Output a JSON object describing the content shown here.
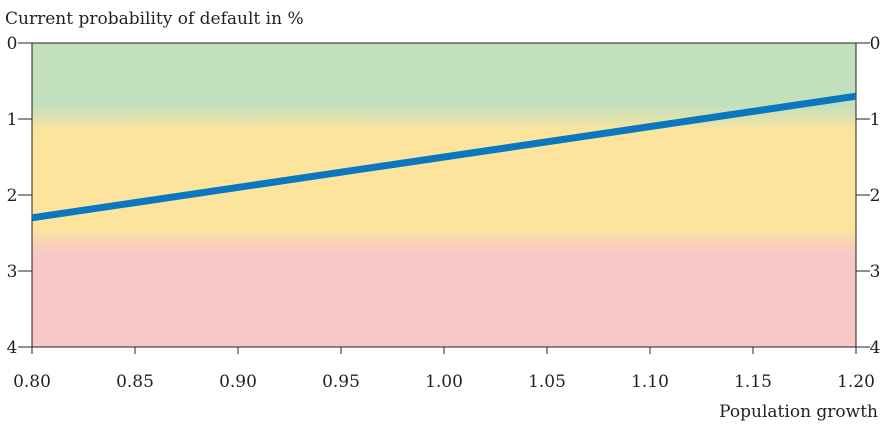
{
  "chart_data": {
    "type": "line",
    "ylabel": "Current probability of default in %",
    "xlabel": "Population growth",
    "xlim": [
      0.8,
      1.2
    ],
    "ylim": [
      0,
      4
    ],
    "y_inverted": true,
    "x_ticks": [
      "0.80",
      "0.85",
      "0.90",
      "0.95",
      "1.00",
      "1.05",
      "1.10",
      "1.15",
      "1.20"
    ],
    "y_ticks": [
      "0",
      "1",
      "2",
      "3",
      "4"
    ],
    "series": [
      {
        "x": [
          0.8,
          1.2
        ],
        "y": [
          2.3,
          0.7
        ],
        "color": "#0a78c0"
      }
    ],
    "zones": [
      {
        "from": 0,
        "to": 1.0,
        "color": "#c3e0bd"
      },
      {
        "from": 1.0,
        "to": 2.6,
        "color": "#fde49c"
      },
      {
        "from": 2.6,
        "to": 4,
        "color": "#f7c8c6"
      }
    ],
    "grid": false
  }
}
